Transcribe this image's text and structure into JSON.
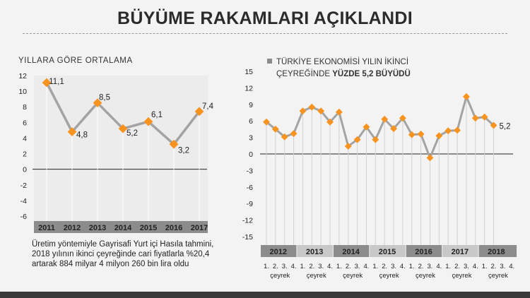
{
  "title": "BÜYÜME RAKAMLARI AÇIKLANDI",
  "left_title": "YILLARA GÖRE ORTALAMA",
  "legend": {
    "line1": "TÜRKİYE EKONOMİSİ YILIN İKİNCİ",
    "line2_normal": "ÇEYREĞİNDE ",
    "line2_bold": "YÜZDE 5,2 BÜYÜDÜ"
  },
  "note": "Üretim yöntemiyle Gayrisafi Yurt içi Hasıla tahmini, 2018 yılının ikinci çeyreğinde cari fiyatlarla %20,4 artarak 884 milyar 4 milyon 260 bin lira oldu",
  "colors": {
    "line": "#a3a3a3",
    "marker": "#f7931e",
    "year_bar": "#8c8c8c",
    "year_bar_alt": "#c8c8c8"
  },
  "chart_data": [
    {
      "type": "line",
      "title": "YILLARA GÖRE ORTALAMA",
      "categories": [
        "2011",
        "2012",
        "2013",
        "2014",
        "2015",
        "2016",
        "2017"
      ],
      "values": [
        11.1,
        4.8,
        8.5,
        5.2,
        6.1,
        3.2,
        7.4
      ],
      "data_labels": [
        "11,1",
        "4,8",
        "8,5",
        "5,2",
        "6,1",
        "3,2",
        "7,4"
      ],
      "yticks": [
        12,
        10,
        8,
        6,
        4,
        2,
        0,
        -2,
        -4,
        -6
      ],
      "ylim": [
        -6,
        12
      ],
      "grid": "vertical drop lines"
    },
    {
      "type": "line",
      "title": "TÜRKİYE EKONOMİSİ YILIN İKİNCİ ÇEYREĞİNDE YÜZDE 5,2 BÜYÜDÜ",
      "years": [
        "2012",
        "2013",
        "2014",
        "2015",
        "2016",
        "2017",
        "2018"
      ],
      "quarter_labels": [
        "1.",
        "2.",
        "3.",
        "4."
      ],
      "quarter_word": "çeyrek",
      "quarters_per_year": [
        4,
        4,
        4,
        4,
        4,
        4,
        2
      ],
      "values": [
        5.8,
        4.5,
        3.1,
        3.7,
        7.8,
        8.5,
        7.8,
        5.8,
        7.6,
        1.4,
        2.6,
        4.9,
        2.6,
        6.3,
        4.6,
        6.5,
        3.5,
        3.6,
        -0.7,
        3.3,
        4.2,
        4.3,
        10.4,
        6.5,
        6.7,
        5.2
      ],
      "data_labels": [
        "5,2"
      ],
      "yticks": [
        15,
        12,
        9,
        6,
        3,
        0,
        -3,
        -6,
        -9,
        -12,
        -15
      ],
      "ylim": [
        -15,
        15
      ],
      "grid": "vertical drop lines"
    }
  ]
}
